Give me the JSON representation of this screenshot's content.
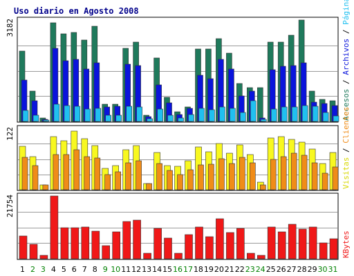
{
  "chart_data": {
    "type": "bar",
    "title": "Uso diario en Agosto 2008",
    "categories": [
      "1",
      "2",
      "3",
      "4",
      "5",
      "6",
      "7",
      "8",
      "9",
      "10",
      "11",
      "12",
      "13",
      "14",
      "15",
      "16",
      "17",
      "18",
      "19",
      "20",
      "21",
      "22",
      "23",
      "24",
      "25",
      "26",
      "27",
      "28",
      "29",
      "30",
      "31"
    ],
    "weekend_days": [
      "2",
      "3",
      "9",
      "10",
      "16",
      "17",
      "23",
      "24",
      "30",
      "31"
    ],
    "colors": {
      "weekday_label": "#000000",
      "weekend_label": "#008000",
      "frame": "#000000",
      "gridline": "#9a9a9a",
      "title": "#00008b",
      "accesos": "#1f7a5c",
      "archivos": "#0a14dc",
      "paginas": "#20c0f0",
      "visitas": "#f8f820",
      "clientes": "#f08c18",
      "kbytes": "#f01818"
    },
    "panels": [
      {
        "id": "top",
        "ymax_label": "3182",
        "ymax": 3182,
        "legend": [
          {
            "text": "Accesos",
            "color": "#1f7a5c"
          },
          {
            "text": " / ",
            "color": "#000000"
          },
          {
            "text": "Archivos",
            "color": "#0a14dc"
          },
          {
            "text": " / ",
            "color": "#000000"
          },
          {
            "text": "Páginas",
            "color": "#20c0f0"
          }
        ],
        "series": [
          {
            "name": "Accesos",
            "values": [
              2200,
              950,
              100,
              3100,
              2750,
              2800,
              2550,
              2980,
              550,
              550,
              2300,
              2500,
              200,
              2000,
              750,
              300,
              460,
              2280,
              2270,
              2600,
              2150,
              1200,
              1050,
              1050,
              2500,
              2500,
              2700,
              3182,
              950,
              690,
              660
            ]
          },
          {
            "name": "Archivos",
            "values": [
              1300,
              650,
              70,
              2300,
              1900,
              1950,
              1650,
              1850,
              450,
              480,
              1790,
              1750,
              150,
              1150,
              590,
              220,
              410,
              1450,
              1350,
              1950,
              1640,
              800,
              950,
              100,
              1630,
              1730,
              1760,
              1850,
              600,
              560,
              490
            ]
          },
          {
            "name": "Páginas",
            "values": [
              350,
              200,
              50,
              550,
              500,
              480,
              400,
              420,
              200,
              200,
              480,
              450,
              80,
              380,
              200,
              100,
              220,
              420,
              360,
              450,
              420,
              280,
              650,
              60,
              400,
              450,
              450,
              500,
              480,
              280,
              180
            ]
          }
        ]
      },
      {
        "id": "middle",
        "ymax_label": "122",
        "ymax": 122,
        "legend": [
          {
            "text": "Visitas",
            "color": "#d8d800"
          },
          {
            "text": " / ",
            "color": "#000000"
          },
          {
            "text": "Clientes",
            "color": "#f08c18"
          }
        ],
        "series": [
          {
            "name": "Visitas",
            "values": [
              87,
              66,
              10,
              106,
              97,
              117,
              102,
              88,
              42,
              48,
              80,
              88,
              12,
              74,
              48,
              46,
              57,
              85,
              76,
              92,
              73,
              89,
              70,
              15,
              103,
              105,
              100,
              94,
              81,
              52,
              74
            ]
          },
          {
            "name": "Clientes",
            "values": [
              65,
              48,
              9,
              70,
              70,
              80,
              66,
              63,
              30,
              35,
              53,
              57,
              12,
              52,
              38,
              30,
              40,
              50,
              51,
              61,
              52,
              64,
              53,
              10,
              60,
              66,
              73,
              68,
              54,
              33,
              45
            ]
          }
        ]
      },
      {
        "id": "bottom",
        "ymax_label": "21754",
        "ymax": 21754,
        "legend": [
          {
            "text": "KBytes",
            "color": "#f01818"
          }
        ],
        "series": [
          {
            "name": "KBytes",
            "values": [
              7800,
              5000,
              1200,
              21754,
              10800,
              10800,
              11100,
              9600,
              4500,
              9400,
              12900,
              13400,
              1900,
              10400,
              7100,
              1900,
              8400,
              11100,
              7600,
              13900,
              9200,
              10400,
              1900,
              1200,
              11100,
              9400,
              11900,
              10200,
              11100,
              5400,
              6900
            ]
          }
        ]
      }
    ]
  }
}
